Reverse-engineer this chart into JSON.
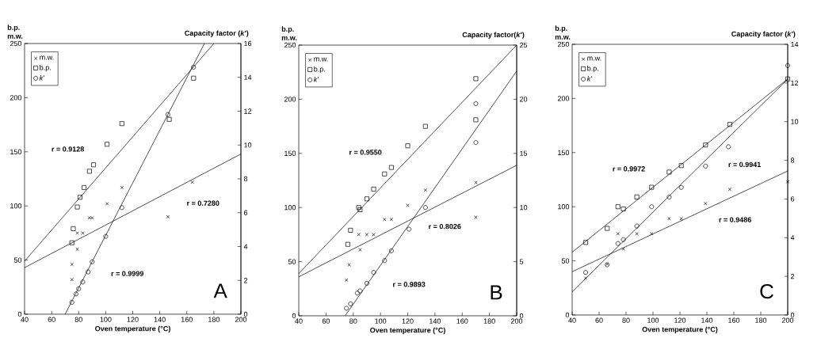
{
  "chart_data": [
    {
      "type": "scatter",
      "xlabel": "Oven temperature (°C)",
      "ylabel": "b.p. m.w.",
      "y2label": "Capacity factor (*k*')",
      "xlim": [
        40,
        200
      ],
      "ylim": [
        0,
        250
      ],
      "y2lim": [
        0,
        16
      ],
      "xticks": [
        40,
        60,
        80,
        100,
        120,
        140,
        160,
        180,
        200
      ],
      "yticks": [
        0,
        50,
        100,
        150,
        200,
        250
      ],
      "y2ticks": [
        0,
        2,
        4,
        6,
        8,
        10,
        12,
        14,
        16
      ],
      "legend": "top left",
      "series": [
        {
          "name": "m.w.",
          "color": "#000000",
          "marker": "cross",
          "x": [
            75,
            75,
            79,
            79,
            83,
            88,
            90,
            101,
            112,
            146,
            164
          ],
          "values": [
            32,
            46,
            60,
            75,
            75,
            89,
            89,
            102,
            117,
            90,
            122
          ]
        },
        {
          "name": "b.p.",
          "color": "#000000",
          "marker": "square",
          "x": [
            75,
            76,
            79,
            81,
            84,
            88,
            91,
            101,
            112,
            147,
            165
          ],
          "values": [
            66,
            79,
            99,
            108,
            117,
            132,
            138,
            157,
            176,
            180,
            218
          ]
        },
        {
          "name": "*k*'",
          "color": "#000000",
          "marker": "circle",
          "axis": "y2",
          "x": [
            75,
            78,
            80,
            83,
            87,
            90,
            100,
            112,
            146,
            165
          ],
          "values": [
            0.7,
            1.2,
            1.5,
            1.9,
            2.5,
            3.1,
            4.6,
            6.3,
            11.8,
            14.6
          ]
        },
        {
          "type": "line",
          "color": "#000000",
          "x": [
            40,
            180
          ],
          "values": [
            49,
            250
          ]
        },
        {
          "type": "line",
          "color": "#000000",
          "x": [
            40,
            200
          ],
          "values": [
            43,
            148
          ]
        },
        {
          "type": "line",
          "color": "#000000",
          "axis": "y2",
          "x": [
            70,
            173
          ],
          "values": [
            0,
            16
          ]
        }
      ],
      "annotations": [
        "r = 0.9128",
        "r = 0.7280",
        "r = 0.9999",
        "A"
      ]
    },
    {
      "type": "scatter",
      "xlabel": "Oven temperature (°C)",
      "ylabel": "b.p. m.w.",
      "y2label": "Capacity factor(*k*')",
      "xlim": [
        40,
        200
      ],
      "ylim": [
        0,
        250
      ],
      "y2lim": [
        0,
        25
      ],
      "xticks": [
        40,
        60,
        80,
        100,
        120,
        140,
        160,
        180,
        200
      ],
      "yticks": [
        0,
        50,
        100,
        150,
        200,
        250
      ],
      "y2ticks": [
        0,
        5,
        10,
        15,
        20,
        25
      ],
      "legend": "top left",
      "series": [
        {
          "name": "m.w.",
          "color": "#000000",
          "marker": "cross",
          "x": [
            75,
            77,
            84,
            85,
            90,
            95,
            103,
            108,
            120,
            133,
            170,
            170
          ],
          "values": [
            33,
            47,
            75,
            61,
            75,
            75,
            89,
            89,
            102,
            116,
            123,
            91
          ]
        },
        {
          "name": "b.p.",
          "color": "#000000",
          "marker": "square",
          "x": [
            76,
            78,
            84,
            85,
            90,
            95,
            103,
            108,
            120,
            133,
            170,
            170
          ],
          "values": [
            66,
            79,
            100,
            98,
            108,
            117,
            131,
            137,
            157,
            175,
            219,
            181
          ]
        },
        {
          "name": "*k*'",
          "color": "#000000",
          "marker": "circle",
          "axis": "y2",
          "x": [
            75,
            78,
            83,
            85,
            90,
            95,
            103,
            108,
            121,
            133,
            170,
            170
          ],
          "values": [
            0.7,
            1.1,
            2.1,
            2.3,
            3.0,
            4.0,
            5.1,
            6.0,
            8.0,
            10.0,
            16.0,
            19.6
          ]
        },
        {
          "type": "line",
          "color": "#000000",
          "x": [
            40,
            200
          ],
          "values": [
            39,
            250
          ]
        },
        {
          "type": "line",
          "color": "#000000",
          "x": [
            40,
            200
          ],
          "values": [
            36,
            139
          ]
        },
        {
          "type": "line",
          "color": "#000000",
          "axis": "y2",
          "x": [
            74,
            200
          ],
          "values": [
            0,
            22.6
          ]
        }
      ],
      "annotations": [
        "r = 0.9550",
        "r = 0.8026",
        "r = 0.9893",
        "B"
      ]
    },
    {
      "type": "scatter",
      "xlabel": "Oven temperature (°C)",
      "ylabel": "b.p. m.w.",
      "y2label": "Capacity factor (*k*')",
      "xlim": [
        40,
        200
      ],
      "ylim": [
        0,
        250
      ],
      "y2lim": [
        0,
        14
      ],
      "xticks": [
        40,
        60,
        80,
        100,
        120,
        140,
        160,
        180,
        200
      ],
      "yticks": [
        0,
        50,
        100,
        150,
        200,
        250
      ],
      "y2ticks": [
        0,
        2,
        4,
        6,
        8,
        10,
        12,
        14
      ],
      "legend": "top left",
      "series": [
        {
          "name": "m.w.",
          "color": "#000000",
          "marker": "cross",
          "x": [
            50,
            66,
            74,
            78,
            88,
            99,
            112,
            121,
            139,
            157,
            200
          ],
          "values": [
            34,
            47,
            75,
            61,
            75,
            75,
            89,
            89,
            103,
            116,
            123
          ]
        },
        {
          "name": "b.p.",
          "color": "#000000",
          "marker": "square",
          "x": [
            50,
            66,
            74,
            78,
            88,
            99,
            112,
            121,
            139,
            157,
            200
          ],
          "values": [
            67,
            80,
            100,
            98,
            109,
            118,
            132,
            138,
            157,
            176,
            218
          ]
        },
        {
          "name": "*k*'",
          "color": "#000000",
          "marker": "circle",
          "axis": "y2",
          "x": [
            50,
            66,
            74,
            78,
            88,
            99,
            112,
            121,
            139,
            156,
            200
          ],
          "values": [
            2.2,
            2.6,
            3.7,
            3.9,
            4.6,
            5.6,
            6.1,
            6.6,
            7.7,
            8.7,
            12.9
          ]
        },
        {
          "type": "line",
          "color": "#000000",
          "x": [
            40,
            200
          ],
          "values": [
            58,
            218
          ]
        },
        {
          "type": "line",
          "color": "#000000",
          "x": [
            40,
            200
          ],
          "values": [
            40,
            133
          ]
        },
        {
          "type": "line",
          "color": "#000000",
          "axis": "y2",
          "x": [
            40,
            200
          ],
          "values": [
            1.2,
            12.2
          ]
        }
      ],
      "annotations": [
        "r = 0.9972",
        "r = 0.9941",
        "r = 0.9486",
        "C"
      ]
    }
  ]
}
